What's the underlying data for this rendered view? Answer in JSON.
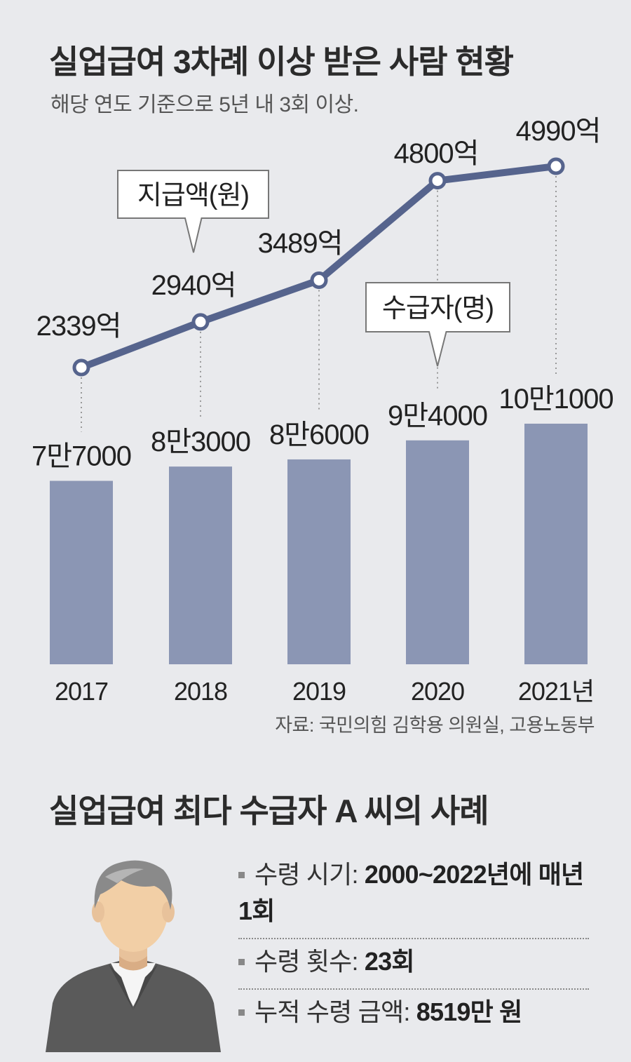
{
  "header": {
    "title": "실업급여 3차례 이상 받은 사람 현황",
    "subtitle": "해당 연도 기준으로 5년 내 3회 이상."
  },
  "chart_data": {
    "type": "bar+line",
    "categories": [
      "2017",
      "2018",
      "2019",
      "2020",
      "2021년"
    ],
    "series": [
      {
        "name": "지급액(원)",
        "type": "line",
        "values": [
          2339,
          2940,
          3489,
          4800,
          4990
        ],
        "value_labels": [
          "2339억",
          "2940억",
          "3489억",
          "4800억",
          "4990억"
        ],
        "unit": "억"
      },
      {
        "name": "수급자(명)",
        "type": "bar",
        "values": [
          77000,
          83000,
          86000,
          94000,
          101000
        ],
        "value_labels": [
          "7만7000",
          "8만3000",
          "8만6000",
          "9만4000",
          "10만1000"
        ]
      }
    ],
    "colors": {
      "bar": "#8b96b4",
      "line": "#56648d",
      "marker_fill": "#ffffff"
    },
    "legend_callouts": [
      "지급액(원)",
      "수급자(명)"
    ]
  },
  "source": "자료: 국민의힘 김학용 의원실, 고용노동부",
  "case": {
    "title": "실업급여 최다 수급자 A 씨의 사례",
    "avatar_icon": "man-avatar-icon",
    "items": [
      {
        "label": "수령 시기: ",
        "value": "2000~2022년에 매년 1회"
      },
      {
        "label": "수령 횟수: ",
        "value": "23회"
      },
      {
        "label": "누적 수령 금액: ",
        "value": "8519만 원"
      }
    ]
  }
}
